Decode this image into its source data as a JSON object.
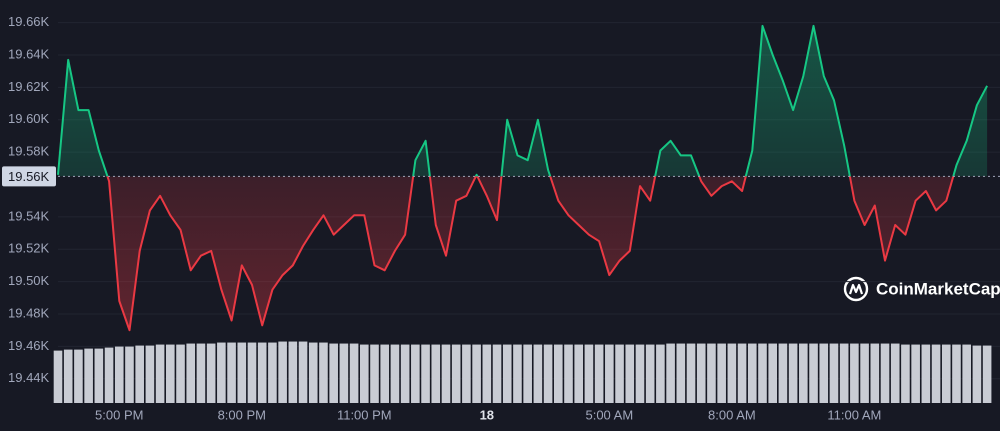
{
  "chart_data": {
    "type": "line",
    "watermark": "CoinMarketCap",
    "categories": [
      null,
      null,
      null,
      null,
      null,
      null,
      "5:00 PM",
      null,
      null,
      null,
      null,
      null,
      null,
      null,
      null,
      null,
      null,
      null,
      "8:00 PM",
      null,
      null,
      null,
      null,
      null,
      null,
      null,
      null,
      null,
      null,
      null,
      "11:00 PM",
      null,
      null,
      null,
      null,
      null,
      null,
      null,
      null,
      null,
      null,
      null,
      "18",
      null,
      null,
      null,
      null,
      null,
      null,
      null,
      null,
      null,
      null,
      null,
      "5:00 AM",
      null,
      null,
      null,
      null,
      null,
      null,
      null,
      null,
      null,
      null,
      null,
      "8:00 AM",
      null,
      null,
      null,
      null,
      null,
      null,
      null,
      null,
      null,
      null,
      null,
      "11:00 AM",
      null,
      null,
      null,
      null,
      null,
      null,
      null,
      null,
      null,
      null,
      null,
      null,
      null
    ],
    "series": [
      {
        "values": [
          19566,
          19637,
          19606,
          19606,
          19581,
          19562,
          19488,
          19470,
          19519,
          19544,
          19553,
          19541,
          19532,
          19507,
          19516,
          19519,
          19495,
          19476,
          19510,
          19498,
          19473,
          19495,
          19504,
          19510,
          19522,
          19532,
          19541,
          19529,
          19535,
          19541,
          19541,
          19510,
          19507,
          19519,
          19529,
          19575,
          19587,
          19535,
          19516,
          19550,
          19553,
          19566,
          19553,
          19538,
          19600,
          19578,
          19575,
          19600,
          19569,
          19550,
          19541,
          19535,
          19529,
          19525,
          19504,
          19513,
          19519,
          19559,
          19550,
          19581,
          19587,
          19578,
          19578,
          19562,
          19553,
          19559,
          19562,
          19556,
          19581,
          19658,
          19640,
          19624,
          19606,
          19627,
          19658,
          19627,
          19612,
          19584,
          19550,
          19535,
          19547,
          19513,
          19535,
          19529,
          19550,
          19556,
          19544,
          19550,
          19572,
          19587,
          19609,
          19621
        ]
      },
      {
        "axis": "y2",
        "color": "#c9ccd4",
        "values": [
          52,
          53,
          53,
          54,
          54,
          55,
          56,
          56,
          57,
          57,
          58,
          58,
          58,
          59,
          59,
          59,
          60,
          60,
          60,
          60,
          60,
          60,
          61,
          61,
          61,
          60,
          60,
          59,
          59,
          59,
          58,
          58,
          58,
          58,
          58,
          58,
          58,
          58,
          58,
          58,
          58,
          58,
          58,
          58,
          58,
          58,
          58,
          58,
          58,
          58,
          58,
          58,
          58,
          58,
          58,
          58,
          58,
          58,
          58,
          58,
          59,
          59,
          59,
          59,
          59,
          59,
          59,
          59,
          59,
          59,
          59,
          59,
          59,
          59,
          59,
          59,
          59,
          59,
          59,
          59,
          59,
          59,
          59,
          58,
          58,
          58,
          58,
          58,
          58,
          58,
          57,
          57
        ]
      }
    ],
    "above_color": "#16c784",
    "below_color": "#ea3943",
    "reference": {
      "value": 19565,
      "label": "19.56K"
    },
    "ylim": [
      19425,
      19674
    ],
    "yticks": [
      {
        "value": 19440,
        "label": "19.44K"
      },
      {
        "value": 19460,
        "label": "19.46K"
      },
      {
        "value": 19480,
        "label": "19.48K"
      },
      {
        "value": 19500,
        "label": "19.50K"
      },
      {
        "value": 19520,
        "label": "19.52K"
      },
      {
        "value": 19540,
        "label": "19.54K"
      },
      {
        "value": 19580,
        "label": "19.58K"
      },
      {
        "value": 19600,
        "label": "19.60K"
      },
      {
        "value": 19620,
        "label": "19.62K"
      },
      {
        "value": 19640,
        "label": "19.64K"
      },
      {
        "value": 19660,
        "label": "19.66K"
      }
    ],
    "y2lim": [
      0,
      400
    ],
    "grid": true
  }
}
